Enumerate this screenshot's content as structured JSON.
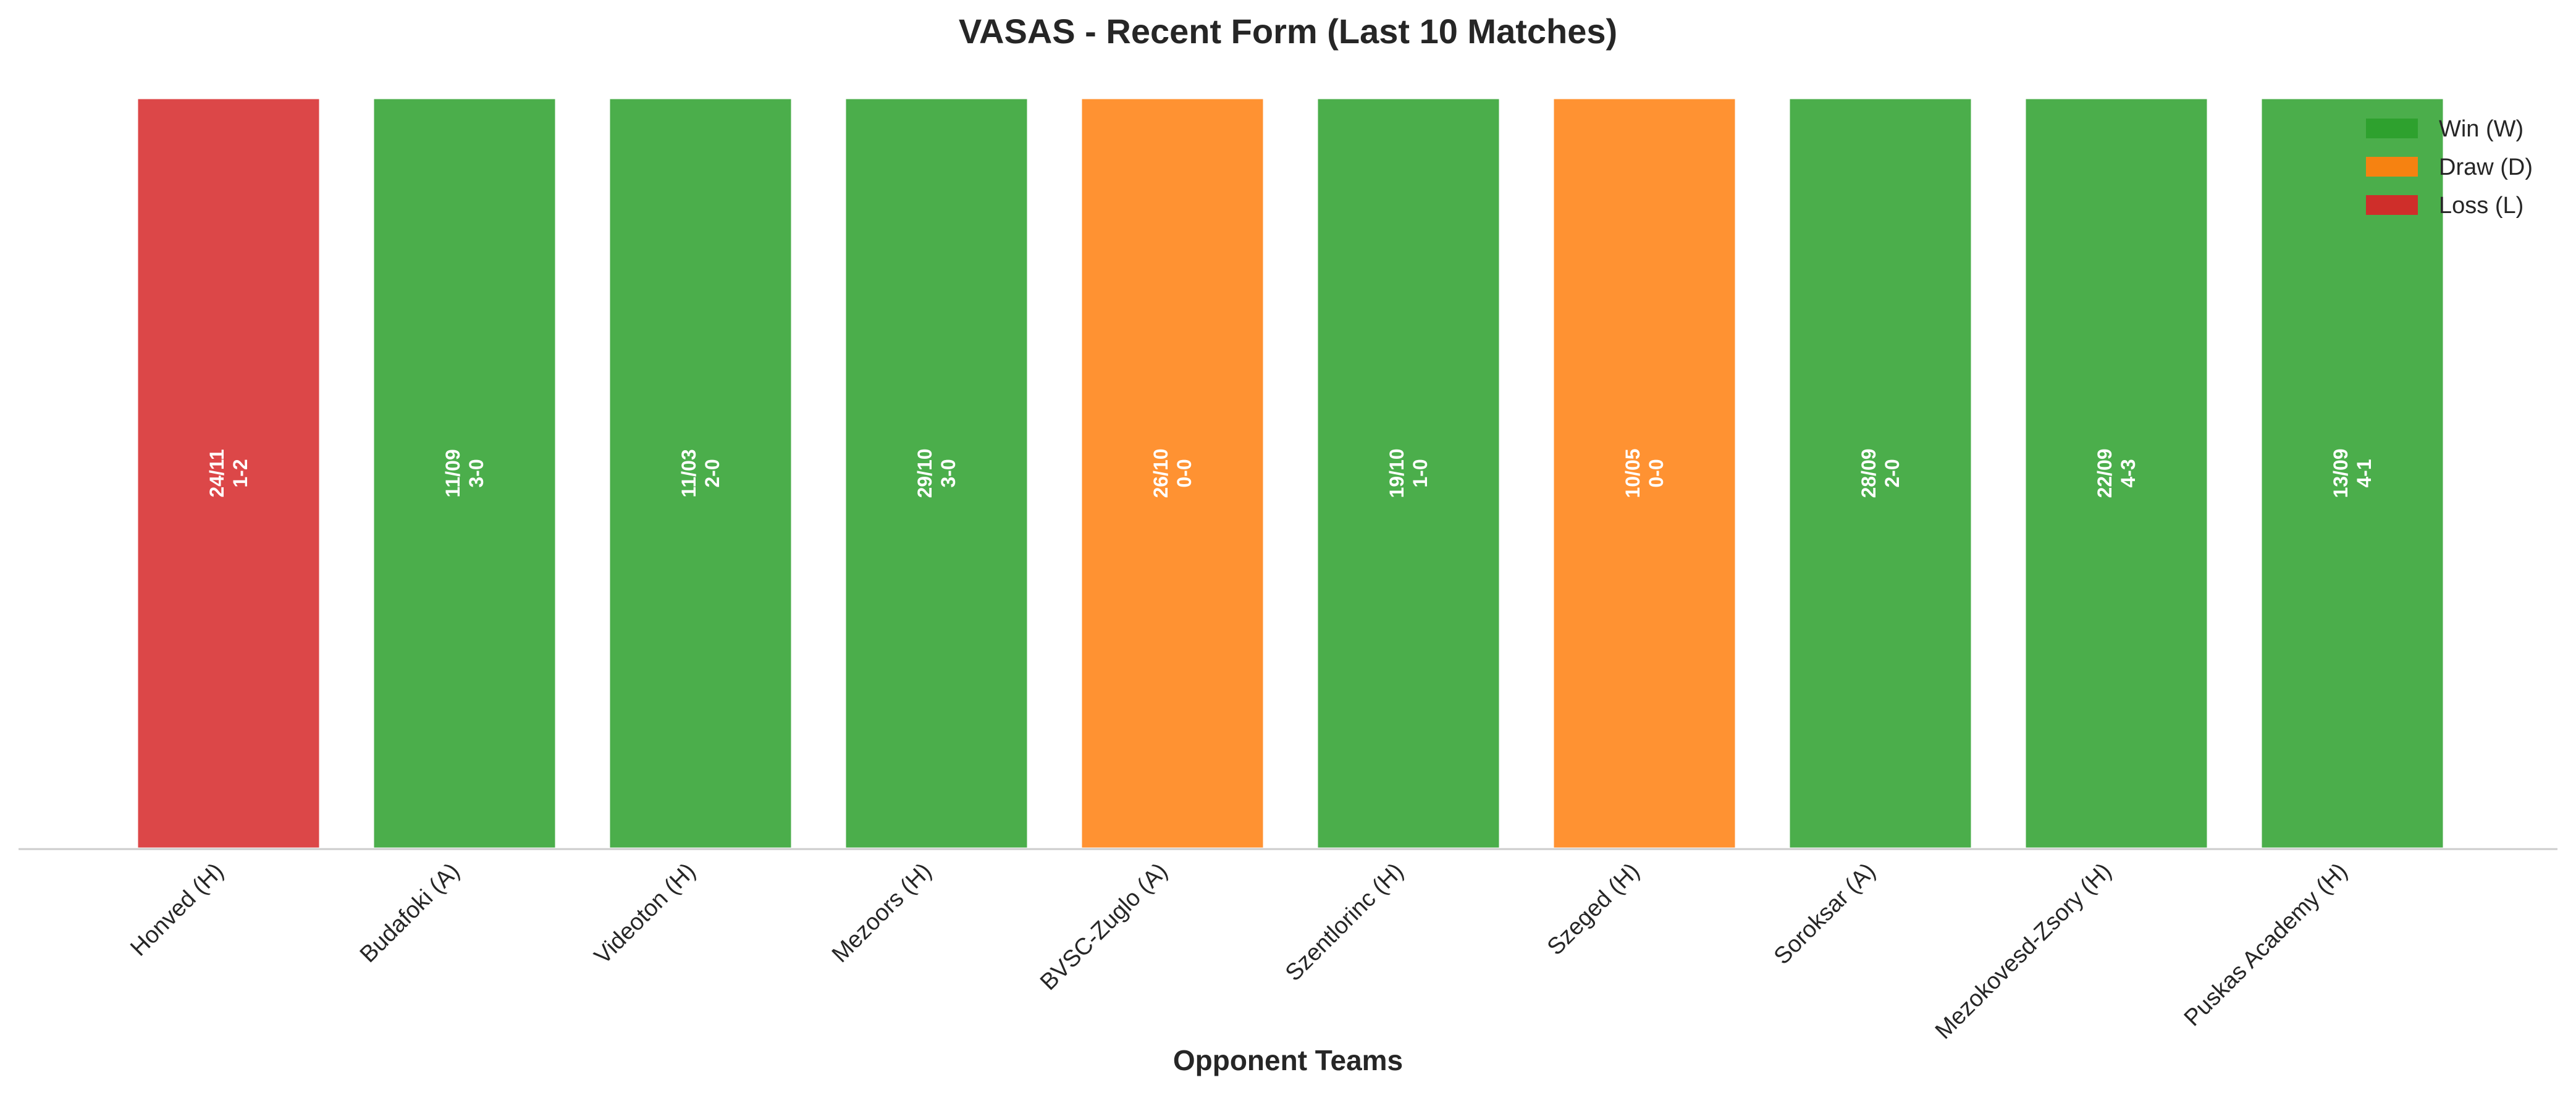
{
  "chart_data": {
    "type": "bar",
    "title": "VASAS - Recent Form (Last 10 Matches)",
    "xlabel": "Opponent Teams",
    "ylabel": "",
    "categories": [
      "Honved (H)",
      "Budafoki (A)",
      "Videoton (H)",
      "Mezoors (H)",
      "BVSC-Zuglo (A)",
      "Szentlorinc (H)",
      "Szeged (H)",
      "Soroksar (A)",
      "Mezokovesd-Zsory (H)",
      "Puskas Academy (H)"
    ],
    "values": [
      1,
      1,
      1,
      1,
      1,
      1,
      1,
      1,
      1,
      1
    ],
    "results": [
      "L",
      "W",
      "W",
      "W",
      "D",
      "W",
      "D",
      "W",
      "W",
      "W"
    ],
    "bar_labels": [
      [
        "24/11",
        "1-2"
      ],
      [
        "11/09",
        "3-0"
      ],
      [
        "11/03",
        "2-0"
      ],
      [
        "29/10",
        "3-0"
      ],
      [
        "26/10",
        "0-0"
      ],
      [
        "19/10",
        "1-0"
      ],
      [
        "10/05",
        "0-0"
      ],
      [
        "28/09",
        "2-0"
      ],
      [
        "22/09",
        "4-3"
      ],
      [
        "13/09",
        "4-1"
      ]
    ],
    "ylim": [
      0,
      1
    ],
    "grid": false,
    "legend_position": "top-right",
    "legend": [
      {
        "key": "W",
        "label": "Win (W)",
        "color": "#2ca02c"
      },
      {
        "key": "D",
        "label": "Draw (D)",
        "color": "#ff7f0e"
      },
      {
        "key": "L",
        "label": "Loss (L)",
        "color": "#d62728"
      }
    ],
    "colors": {
      "W": "#2ca02c",
      "D": "#ff7f0e",
      "L": "#d62728"
    }
  }
}
